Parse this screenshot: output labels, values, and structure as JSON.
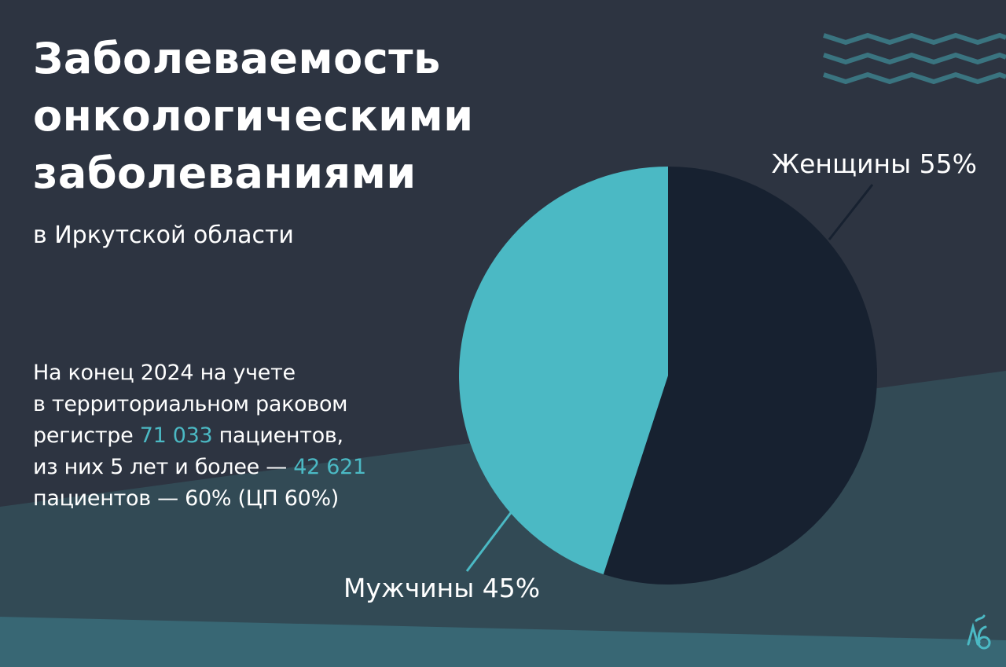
{
  "title_lines": [
    "Заболеваемость",
    "онкологическими",
    "заболеваниями"
  ],
  "subtitle": "в Иркутской области",
  "stats": {
    "line1": "На конец 2024 на учете",
    "line2": "в территориальном раковом",
    "line3_pre": "регистре ",
    "line3_num": "71 033",
    "line3_post": " пациентов,",
    "line4_pre": "из них 5 лет и более — ",
    "line4_num": "42 621",
    "line5": "пациентов — 60% (ЦП 60%)"
  },
  "colors": {
    "background": "#2d3441",
    "lower_band": "#324a55",
    "bottom_band": "#386774",
    "accent": "#4bb9c4",
    "women": "#172130",
    "men": "#4bb9c4",
    "waves": "#3a7480"
  },
  "decor": {
    "top_right": "wave-lines-icon",
    "bottom_right": "regional-logo-icon"
  },
  "chart_data": {
    "type": "pie",
    "title": "",
    "start": "12 o'clock, clockwise",
    "slices": [
      {
        "name": "Женщины",
        "value": 55,
        "label": "Женщины 55%",
        "color": "#172130"
      },
      {
        "name": "Мужчины",
        "value": 45,
        "label": "Мужчины 45%",
        "color": "#4bb9c4"
      }
    ]
  }
}
